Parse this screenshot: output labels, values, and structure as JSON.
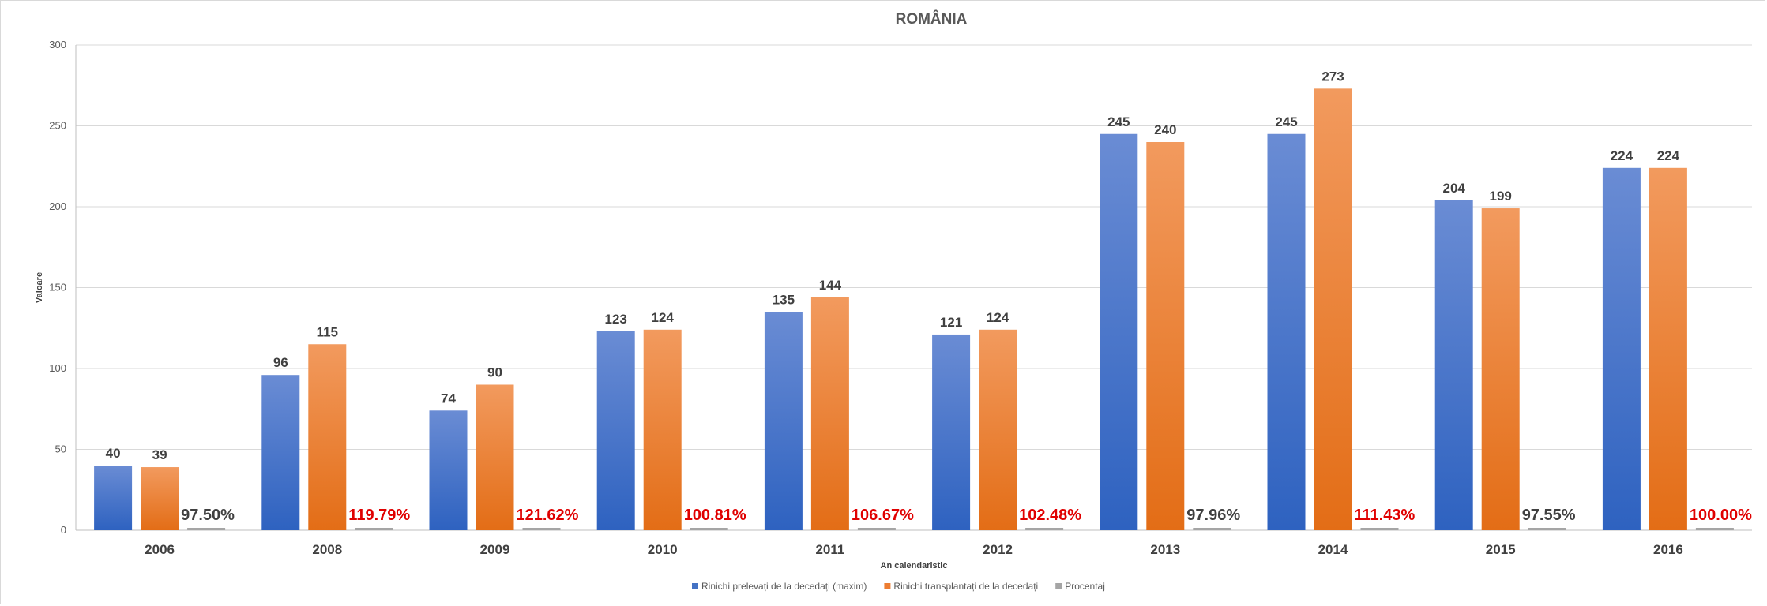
{
  "chart_data": {
    "type": "bar",
    "title": "ROMÂNIA",
    "xlabel": "An calendaristic",
    "ylabel": "Valoare",
    "ylim": [
      0,
      300
    ],
    "yticks": [
      0,
      50,
      100,
      150,
      200,
      250,
      300
    ],
    "grid": true,
    "legend_position": "bottom",
    "categories": [
      "2006",
      "2008",
      "2009",
      "2010",
      "2011",
      "2012",
      "2013",
      "2014",
      "2015",
      "2016"
    ],
    "series": [
      {
        "name": "Rinichi prelevați de la decedați (maxim)",
        "color": "#4472C4",
        "values": [
          40,
          96,
          74,
          123,
          135,
          121,
          245,
          245,
          204,
          224
        ]
      },
      {
        "name": "Rinichi transplantați de la decedați",
        "color": "#ED7D31",
        "values": [
          39,
          115,
          90,
          124,
          144,
          124,
          240,
          273,
          199,
          224
        ]
      },
      {
        "name": "Procentaj",
        "color": "#A5A5A5",
        "values": [
          0.975,
          1.1979,
          1.2162,
          1.0081,
          1.0667,
          1.0248,
          0.9796,
          1.1143,
          0.9755,
          1.0
        ]
      }
    ],
    "percent_labels": [
      "97.50%",
      "119.79%",
      "121.62%",
      "100.81%",
      "106.67%",
      "102.48%",
      "97.96%",
      "111.43%",
      "97.55%",
      "100.00%"
    ],
    "percent_label_colors": [
      "#404040",
      "#E00000",
      "#E00000",
      "#E00000",
      "#E00000",
      "#E00000",
      "#404040",
      "#E00000",
      "#404040",
      "#E00000"
    ]
  }
}
